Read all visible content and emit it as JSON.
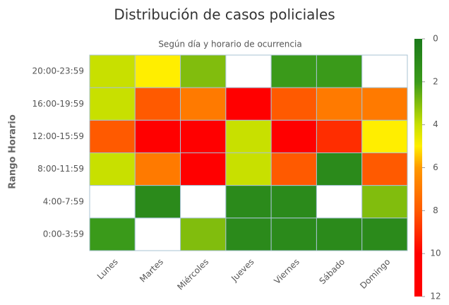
{
  "chart_data": {
    "type": "heatmap",
    "title": "Distribución de casos policiales",
    "subtitle": "Según día y horario de ocurrencia",
    "y_axis_title": "Rango Horario",
    "categories": [
      "Lunes",
      "Martes",
      "Miércoles",
      "Jueves",
      "Viernes",
      "Sábado",
      "Domingo"
    ],
    "y_categories": [
      "20:00-23:59",
      "16:00-19:59",
      "12:00-15:59",
      "8:00-11:59",
      "4:00-7:59",
      "0:00-3:59"
    ],
    "values": [
      [
        4,
        5,
        3,
        null,
        2,
        2,
        null
      ],
      [
        4,
        8,
        7,
        10,
        8,
        7,
        7
      ],
      [
        8,
        10,
        10,
        4,
        10,
        9,
        5
      ],
      [
        4,
        7,
        10,
        4,
        8,
        1,
        8
      ],
      [
        null,
        1,
        null,
        1,
        1,
        null,
        3
      ],
      [
        2,
        null,
        3,
        1,
        1,
        1,
        1
      ]
    ],
    "colorscale": [
      [
        0,
        "#1b7a1b"
      ],
      [
        2,
        "#3a9a1a"
      ],
      [
        4,
        "#c8e000"
      ],
      [
        5,
        "#ffee00"
      ],
      [
        6,
        "#ff9900"
      ],
      [
        8,
        "#ff5a00"
      ],
      [
        10,
        "#ff0000"
      ],
      [
        12,
        "#ff0000"
      ]
    ],
    "clim": [
      0,
      12
    ],
    "cticks": [
      0,
      2,
      4,
      6,
      8,
      10,
      12
    ]
  }
}
